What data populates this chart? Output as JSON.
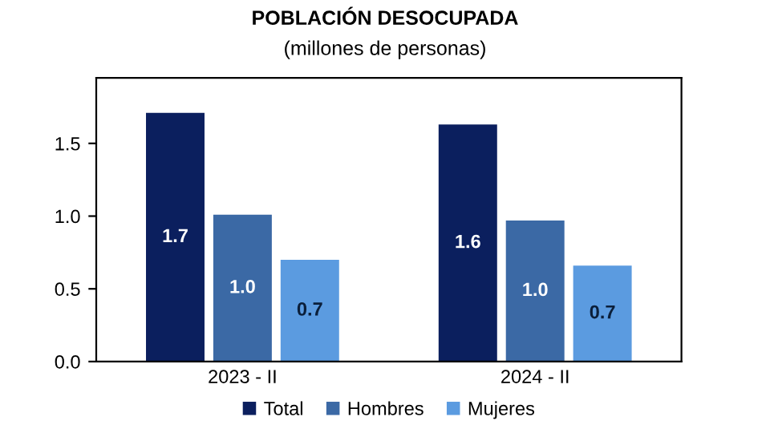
{
  "chart_data": {
    "type": "bar",
    "title": "POBLACIÓN DESOCUPADA",
    "subtitle": "(millones de personas)",
    "categories": [
      "2023 - II",
      "2024 - II"
    ],
    "series": [
      {
        "name": "Total",
        "color": "#0b1f5e",
        "values": [
          1.71,
          1.63
        ],
        "value_labels": [
          "1.7",
          "1.6"
        ]
      },
      {
        "name": "Hombres",
        "color": "#3b69a5",
        "values": [
          1.01,
          0.97
        ],
        "value_labels": [
          "1.0",
          "1.0"
        ]
      },
      {
        "name": "Mujeres",
        "color": "#5b9be0",
        "values": [
          0.7,
          0.66
        ],
        "value_labels": [
          "0.7",
          "0.7"
        ]
      }
    ],
    "ylim": [
      0,
      1.95
    ],
    "yticks": [
      {
        "value": 0,
        "label": "0.0"
      },
      {
        "value": 0.5,
        "label": "0.5"
      },
      {
        "value": 1,
        "label": "1.0"
      },
      {
        "value": 1.5,
        "label": "1.5"
      }
    ],
    "grid": false,
    "legend": "bottom"
  }
}
